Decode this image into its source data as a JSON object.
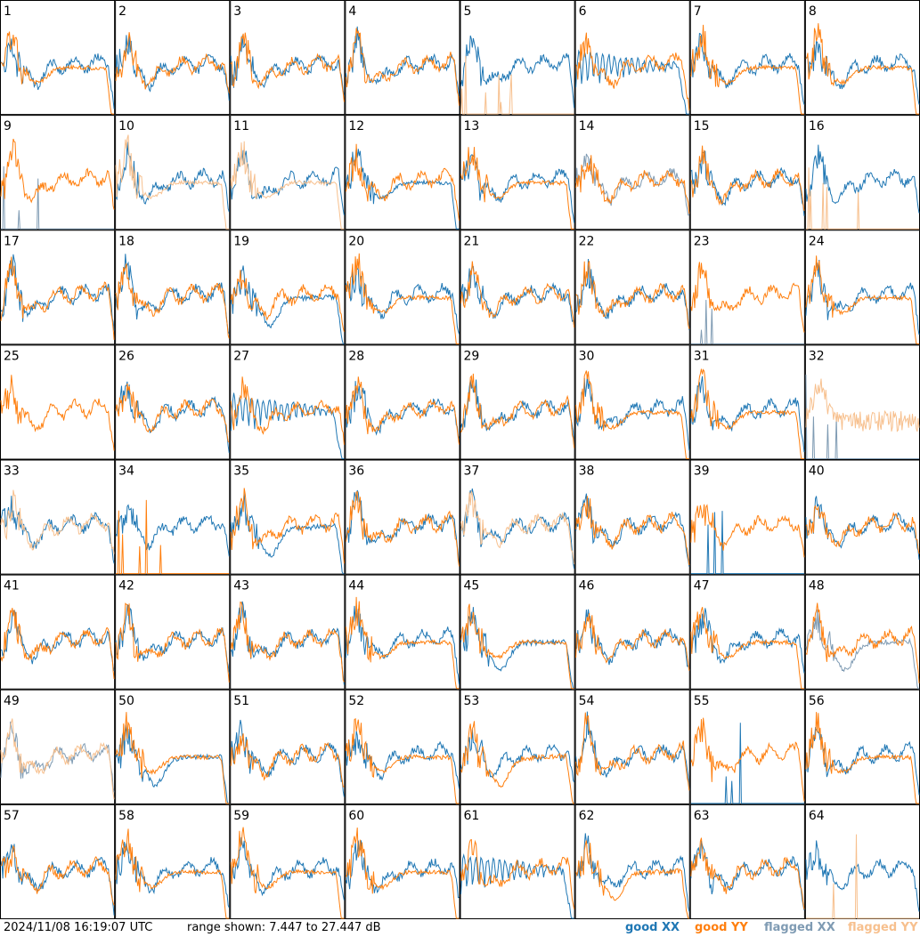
{
  "footer": {
    "timestamp": "2024/11/08 16:19:07 UTC",
    "range_text": "range shown: 7.447 to 27.447 dB"
  },
  "legend": {
    "good_xx": "good XX",
    "good_yy": "good YY",
    "flagged_xx": "flagged XX",
    "flagged_yy": "flagged YY"
  },
  "colors": {
    "good_xx": "#1f77b4",
    "good_yy": "#ff7f0e",
    "flagged_xx": "#7f9bb3",
    "flagged_yy": "#f7c08e",
    "border": "#000000"
  },
  "chart_data": {
    "type": "line",
    "layout": "8x8 small multiples",
    "ylim": [
      7.447,
      27.447
    ],
    "yunit": "dB",
    "panels": [
      {
        "id": "1",
        "xx": "good",
        "yy": "good",
        "xx_shape": "typical",
        "yy_shape": "droop"
      },
      {
        "id": "2",
        "xx": "good",
        "yy": "good",
        "xx_shape": "typical",
        "yy_shape": "typical"
      },
      {
        "id": "3",
        "xx": "good",
        "yy": "good",
        "xx_shape": "typical",
        "yy_shape": "typical"
      },
      {
        "id": "4",
        "xx": "good",
        "yy": "good",
        "xx_shape": "typical",
        "yy_shape": "typical"
      },
      {
        "id": "5",
        "xx": "good",
        "yy": "flagged",
        "xx_shape": "typical",
        "yy_shape": "dead"
      },
      {
        "id": "6",
        "xx": "good",
        "yy": "good",
        "xx_shape": "oscillating",
        "yy_shape": "typical"
      },
      {
        "id": "7",
        "xx": "good",
        "yy": "good",
        "xx_shape": "typical",
        "yy_shape": "droop"
      },
      {
        "id": "8",
        "xx": "good",
        "yy": "good",
        "xx_shape": "typical",
        "yy_shape": "droop"
      },
      {
        "id": "9",
        "xx": "flagged",
        "yy": "good",
        "xx_shape": "dead",
        "yy_shape": "typical"
      },
      {
        "id": "10",
        "xx": "good",
        "yy": "flagged",
        "xx_shape": "typical",
        "yy_shape": "droop"
      },
      {
        "id": "11",
        "xx": "good",
        "yy": "flagged",
        "xx_shape": "typical",
        "yy_shape": "droop"
      },
      {
        "id": "12",
        "xx": "good",
        "yy": "good",
        "xx_shape": "droop",
        "yy_shape": "typical"
      },
      {
        "id": "13",
        "xx": "good",
        "yy": "good",
        "xx_shape": "typical",
        "yy_shape": "droop"
      },
      {
        "id": "14",
        "xx": "flagged",
        "yy": "good",
        "xx_shape": "typical",
        "yy_shape": "typical"
      },
      {
        "id": "15",
        "xx": "good",
        "yy": "good",
        "xx_shape": "typical",
        "yy_shape": "typical"
      },
      {
        "id": "16",
        "xx": "good",
        "yy": "flagged",
        "xx_shape": "typical",
        "yy_shape": "dead"
      },
      {
        "id": "17",
        "xx": "good",
        "yy": "good",
        "xx_shape": "typical",
        "yy_shape": "typical"
      },
      {
        "id": "18",
        "xx": "good",
        "yy": "good",
        "xx_shape": "typical",
        "yy_shape": "typical"
      },
      {
        "id": "19",
        "xx": "good",
        "yy": "good",
        "xx_shape": "dip",
        "yy_shape": "typical"
      },
      {
        "id": "20",
        "xx": "good",
        "yy": "good",
        "xx_shape": "typical",
        "yy_shape": "droop"
      },
      {
        "id": "21",
        "xx": "good",
        "yy": "good",
        "xx_shape": "typical",
        "yy_shape": "typical"
      },
      {
        "id": "22",
        "xx": "good",
        "yy": "good",
        "xx_shape": "typical",
        "yy_shape": "typical"
      },
      {
        "id": "23",
        "xx": "flagged",
        "yy": "good",
        "xx_shape": "dead",
        "yy_shape": "typical"
      },
      {
        "id": "24",
        "xx": "good",
        "yy": "good",
        "xx_shape": "typical",
        "yy_shape": "droop"
      },
      {
        "id": "25",
        "xx": "good",
        "yy": "good",
        "xx_shape": "hidden",
        "yy_shape": "typical"
      },
      {
        "id": "26",
        "xx": "good",
        "yy": "good",
        "xx_shape": "typical",
        "yy_shape": "typical"
      },
      {
        "id": "27",
        "xx": "good",
        "yy": "good",
        "xx_shape": "oscillating",
        "yy_shape": "typical"
      },
      {
        "id": "28",
        "xx": "good",
        "yy": "good",
        "xx_shape": "typical",
        "yy_shape": "typical"
      },
      {
        "id": "29",
        "xx": "good",
        "yy": "good",
        "xx_shape": "typical",
        "yy_shape": "typical"
      },
      {
        "id": "30",
        "xx": "good",
        "yy": "good",
        "xx_shape": "typical",
        "yy_shape": "droop"
      },
      {
        "id": "31",
        "xx": "good",
        "yy": "good",
        "xx_shape": "typical",
        "yy_shape": "droop"
      },
      {
        "id": "32",
        "xx": "flagged",
        "yy": "flagged",
        "xx_shape": "dead",
        "yy_shape": "noisy"
      },
      {
        "id": "33",
        "xx": "good",
        "yy": "flagged",
        "xx_shape": "typical",
        "yy_shape": "typical"
      },
      {
        "id": "34",
        "xx": "good",
        "yy": "good",
        "xx_shape": "typical",
        "yy_shape": "dead"
      },
      {
        "id": "35",
        "xx": "good",
        "yy": "good",
        "xx_shape": "dip",
        "yy_shape": "typical"
      },
      {
        "id": "36",
        "xx": "good",
        "yy": "good",
        "xx_shape": "typical",
        "yy_shape": "typical"
      },
      {
        "id": "37",
        "xx": "good",
        "yy": "flagged",
        "xx_shape": "typical",
        "yy_shape": "typical"
      },
      {
        "id": "38",
        "xx": "good",
        "yy": "good",
        "xx_shape": "typical",
        "yy_shape": "typical"
      },
      {
        "id": "39",
        "xx": "good",
        "yy": "good",
        "xx_shape": "dead",
        "yy_shape": "typical"
      },
      {
        "id": "40",
        "xx": "good",
        "yy": "good",
        "xx_shape": "typical",
        "yy_shape": "typical"
      },
      {
        "id": "41",
        "xx": "good",
        "yy": "good",
        "xx_shape": "typical",
        "yy_shape": "typical"
      },
      {
        "id": "42",
        "xx": "good",
        "yy": "good",
        "xx_shape": "typical",
        "yy_shape": "typical"
      },
      {
        "id": "43",
        "xx": "good",
        "yy": "good",
        "xx_shape": "typical",
        "yy_shape": "typical"
      },
      {
        "id": "44",
        "xx": "good",
        "yy": "good",
        "xx_shape": "typical",
        "yy_shape": "droop"
      },
      {
        "id": "45",
        "xx": "good",
        "yy": "good",
        "xx_shape": "dip",
        "yy_shape": "droop"
      },
      {
        "id": "46",
        "xx": "good",
        "yy": "good",
        "xx_shape": "typical",
        "yy_shape": "typical"
      },
      {
        "id": "47",
        "xx": "good",
        "yy": "good",
        "xx_shape": "typical",
        "yy_shape": "droop"
      },
      {
        "id": "48",
        "xx": "flagged",
        "yy": "good",
        "xx_shape": "dip",
        "yy_shape": "typical"
      },
      {
        "id": "49",
        "xx": "flagged",
        "yy": "flagged",
        "xx_shape": "typical",
        "yy_shape": "typical"
      },
      {
        "id": "50",
        "xx": "good",
        "yy": "good",
        "xx_shape": "dip",
        "yy_shape": "droop"
      },
      {
        "id": "51",
        "xx": "good",
        "yy": "good",
        "xx_shape": "typical",
        "yy_shape": "typical"
      },
      {
        "id": "52",
        "xx": "good",
        "yy": "good",
        "xx_shape": "typical",
        "yy_shape": "droop"
      },
      {
        "id": "53",
        "xx": "good",
        "yy": "good",
        "xx_shape": "typical",
        "yy_shape": "dip"
      },
      {
        "id": "54",
        "xx": "good",
        "yy": "good",
        "xx_shape": "typical",
        "yy_shape": "typical"
      },
      {
        "id": "55",
        "xx": "good",
        "yy": "good",
        "xx_shape": "dead",
        "yy_shape": "typical"
      },
      {
        "id": "56",
        "xx": "good",
        "yy": "good",
        "xx_shape": "typical",
        "yy_shape": "droop"
      },
      {
        "id": "57",
        "xx": "good",
        "yy": "good",
        "xx_shape": "typical",
        "yy_shape": "typical"
      },
      {
        "id": "58",
        "xx": "good",
        "yy": "good",
        "xx_shape": "typical",
        "yy_shape": "droop"
      },
      {
        "id": "59",
        "xx": "good",
        "yy": "good",
        "xx_shape": "typical",
        "yy_shape": "droop"
      },
      {
        "id": "60",
        "xx": "good",
        "yy": "good",
        "xx_shape": "typical",
        "yy_shape": "droop"
      },
      {
        "id": "61",
        "xx": "good",
        "yy": "good",
        "xx_shape": "oscillating",
        "yy_shape": "typical"
      },
      {
        "id": "62",
        "xx": "good",
        "yy": "good",
        "xx_shape": "typical",
        "yy_shape": "dip"
      },
      {
        "id": "63",
        "xx": "good",
        "yy": "good",
        "xx_shape": "typical",
        "yy_shape": "typical"
      },
      {
        "id": "64",
        "xx": "good",
        "yy": "flagged",
        "xx_shape": "typical",
        "yy_shape": "dead"
      }
    ]
  }
}
